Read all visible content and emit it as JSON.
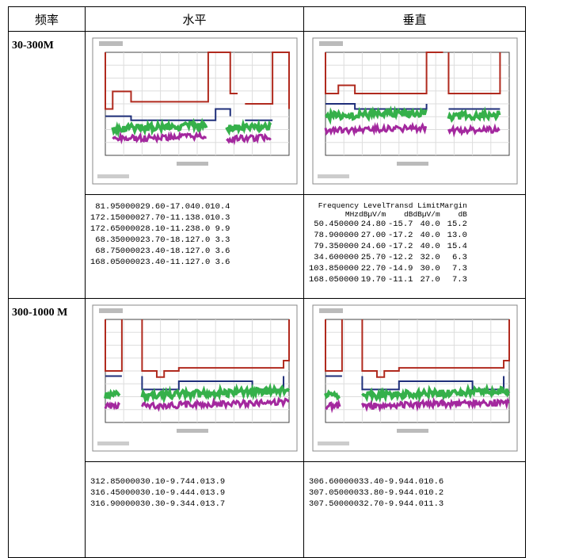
{
  "table": {
    "header": [
      "频率",
      "水平",
      "垂直"
    ],
    "rows": [
      {
        "band": "30-300M",
        "horizontal": {
          "groups": [
            [
              [
                "81.950000",
                "29.60",
                "-17.0",
                "40.0",
                "10.4"
              ],
              [
                "172.150000",
                "27.70",
                "-11.1",
                "38.0",
                "10.3"
              ],
              [
                "172.650000",
                "28.10",
                "-11.2",
                "38.0",
                "9.9"
              ]
            ],
            [
              [
                "68.350000",
                "23.70",
                "-18.1",
                "27.0",
                "3.3"
              ],
              [
                "68.750000",
                "23.40",
                "-18.1",
                "27.0",
                "3.6"
              ],
              [
                "168.050000",
                "23.40",
                "-11.1",
                "27.0",
                "3.6"
              ]
            ]
          ]
        },
        "vertical": {
          "columns": [
            [
              "Frequency",
              "MHz"
            ],
            [
              "Level",
              "dBµV/m"
            ],
            [
              "Transd",
              "dB"
            ],
            [
              "Limit",
              "dBµV/m"
            ],
            [
              "Margin",
              "dB"
            ]
          ],
          "groups": [
            [
              [
                "50.450000",
                "24.80",
                "-15.7",
                "40.0",
                "15.2"
              ],
              [
                "78.900000",
                "27.00",
                "-17.2",
                "40.0",
                "13.0"
              ],
              [
                "79.350000",
                "24.60",
                "-17.2",
                "40.0",
                "15.4"
              ]
            ],
            [
              [
                "34.600000",
                "25.70",
                "-12.2",
                "32.0",
                "6.3"
              ],
              [
                "103.850000",
                "22.70",
                "-14.9",
                "30.0",
                "7.3"
              ],
              [
                "168.050000",
                "19.70",
                "-11.1",
                "27.0",
                "7.3"
              ]
            ]
          ]
        }
      },
      {
        "band": "300-1000 M",
        "horizontal": {
          "groups": [
            [
              [
                "312.850000",
                "30.10",
                "-9.7",
                "44.0",
                "13.9"
              ],
              [
                "316.450000",
                "30.10",
                "-9.4",
                "44.0",
                "13.9"
              ],
              [
                "316.900000",
                "30.30",
                "-9.3",
                "44.0",
                "13.7"
              ]
            ]
          ]
        },
        "vertical": {
          "groups": [
            [
              [
                "306.600000",
                "33.40",
                "-9.9",
                "44.0",
                "10.6"
              ],
              [
                "307.050000",
                "33.80",
                "-9.9",
                "44.0",
                "10.2"
              ],
              [
                "307.500000",
                "32.70",
                "-9.9",
                "44.0",
                "11.3"
              ]
            ]
          ]
        }
      }
    ]
  }
}
